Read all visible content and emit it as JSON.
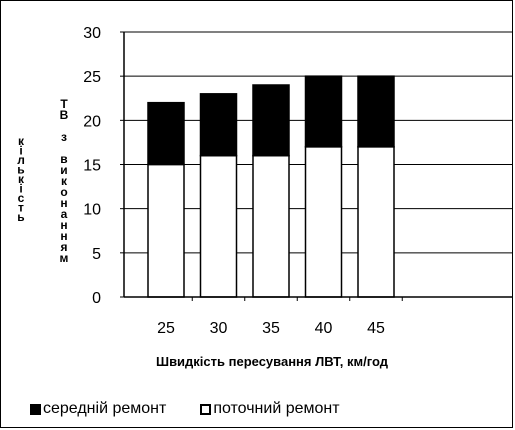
{
  "chart_data": {
    "type": "bar",
    "stacked": true,
    "categories": [
      "25",
      "30",
      "35",
      "40",
      "45"
    ],
    "series": [
      {
        "name": "поточний ремонт",
        "values": [
          15,
          16,
          16,
          17,
          17
        ],
        "color": "#ffffff"
      },
      {
        "name": "середній ремонт",
        "values": [
          7,
          7,
          8,
          8,
          8
        ],
        "color": "#000000"
      }
    ],
    "xlabel": "Швидкість пересування ЛВТ, км/год",
    "ylabel_left": "кількість",
    "ylabel_right": "ТВ з виконанням",
    "ylim": [
      0,
      30
    ],
    "yticks": [
      "0",
      "5",
      "10",
      "15",
      "20",
      "25",
      "30"
    ],
    "grid": true,
    "legend_position": "bottom"
  },
  "legend": {
    "series1": "середній ремонт",
    "series2": "поточний ремонт"
  }
}
